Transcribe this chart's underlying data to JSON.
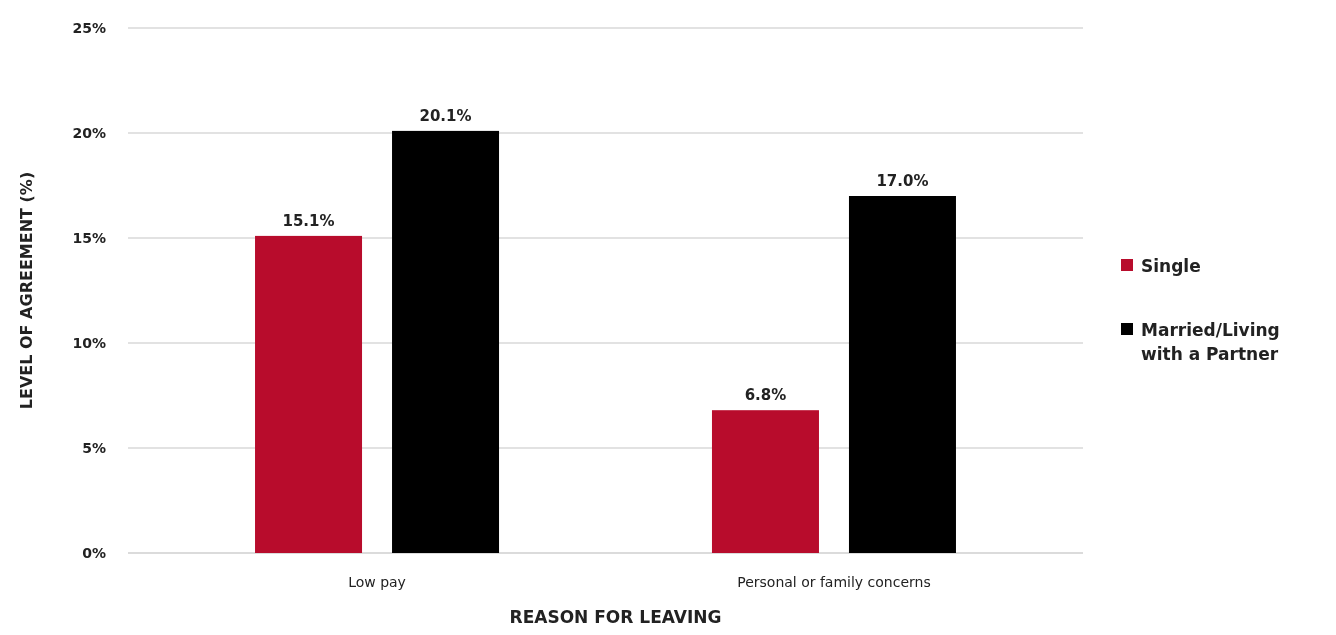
{
  "chart_data": {
    "type": "bar",
    "xlabel": "REASON FOR LEAVING",
    "ylabel": "LEVEL OF AGREEMENT (%)",
    "categories": [
      "Low pay",
      "Personal or family concerns"
    ],
    "series": [
      {
        "name": "Single",
        "color": "#b80c2c",
        "values": [
          15.1,
          6.8
        ],
        "value_labels": [
          "15.1%",
          "6.8%"
        ]
      },
      {
        "name": "Married/Living with a Partner",
        "color": "#000000",
        "values": [
          20.1,
          17.0
        ],
        "value_labels": [
          "20.1%",
          "17.0%"
        ]
      }
    ],
    "ylim": [
      0,
      25
    ],
    "yticks": [
      {
        "value": 0,
        "label": "0%"
      },
      {
        "value": 5,
        "label": "5%"
      },
      {
        "value": 10,
        "label": "10%"
      },
      {
        "value": 15,
        "label": "15%"
      },
      {
        "value": 20,
        "label": "20%"
      },
      {
        "value": 25,
        "label": "25%"
      }
    ],
    "grid": "y",
    "legend": "right"
  }
}
